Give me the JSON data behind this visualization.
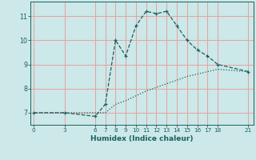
{
  "xlabel": "Humidex (Indice chaleur)",
  "background_color": "#cce8e8",
  "grid_color": "#e8a0a0",
  "line_color": "#1a6060",
  "line1_x": [
    0,
    3,
    6,
    7,
    8,
    9,
    10,
    11,
    12,
    13,
    14,
    15,
    16,
    17,
    18,
    21
  ],
  "line1_y": [
    7.0,
    7.0,
    6.85,
    7.35,
    10.0,
    9.35,
    10.6,
    11.2,
    11.1,
    11.2,
    10.6,
    10.0,
    9.6,
    9.35,
    9.0,
    8.7
  ],
  "line2_x": [
    0,
    3,
    6,
    7,
    8,
    9,
    10,
    11,
    12,
    13,
    14,
    15,
    16,
    17,
    18,
    21
  ],
  "line2_y": [
    7.0,
    7.0,
    7.0,
    7.0,
    7.35,
    7.5,
    7.7,
    7.9,
    8.05,
    8.2,
    8.35,
    8.5,
    8.6,
    8.7,
    8.8,
    8.7
  ],
  "xticks": [
    0,
    3,
    6,
    7,
    8,
    9,
    10,
    11,
    12,
    13,
    14,
    15,
    16,
    17,
    18,
    21
  ],
  "yticks": [
    7,
    8,
    9,
    10,
    11
  ],
  "ylim": [
    6.5,
    11.6
  ],
  "xlim": [
    -0.3,
    21.5
  ]
}
